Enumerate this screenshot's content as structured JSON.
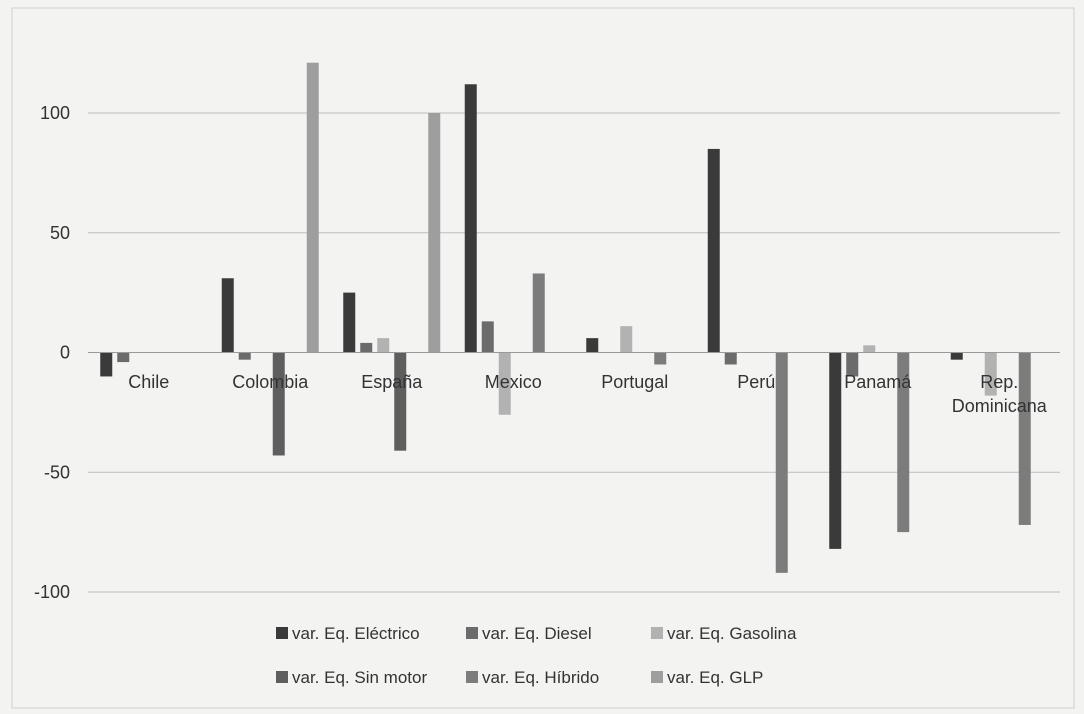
{
  "chart_data": {
    "type": "bar",
    "categories": [
      "Chile",
      "Colombia",
      "España",
      "Mexico",
      "Portugal",
      "Perú",
      "Panamá",
      "Rep. Dominicana"
    ],
    "category_lines": [
      [
        "Chile"
      ],
      [
        "Colombia"
      ],
      [
        "España"
      ],
      [
        "Mexico"
      ],
      [
        "Portugal"
      ],
      [
        "Perú"
      ],
      [
        "Panamá"
      ],
      [
        "Rep.",
        "Dominicana"
      ]
    ],
    "series": [
      {
        "name": "var. Eq. Eléctrico",
        "color": "#3a3a3a",
        "values": [
          -10,
          31,
          25,
          112,
          6,
          85,
          -82,
          -3
        ]
      },
      {
        "name": "var. Eq. Diesel",
        "color": "#6b6b6b",
        "values": [
          -4,
          -3,
          4,
          13,
          0,
          -5,
          -10,
          0
        ]
      },
      {
        "name": "var. Eq. Gasolina",
        "color": "#b2b2b2",
        "values": [
          0,
          0,
          6,
          -26,
          11,
          0,
          3,
          -18
        ]
      },
      {
        "name": "var. Eq. Sin motor",
        "color": "#5e5e5e",
        "values": [
          0,
          -43,
          -41,
          0,
          0,
          0,
          0,
          0
        ]
      },
      {
        "name": "var. Eq. Híbrido",
        "color": "#7c7c7c",
        "values": [
          0,
          0,
          0,
          33,
          -5,
          -92,
          -75,
          -72
        ]
      },
      {
        "name": "var. Eq. GLP",
        "color": "#9e9e9e",
        "values": [
          0,
          121,
          100,
          0,
          0,
          0,
          0,
          0
        ]
      }
    ],
    "y_ticks": [
      "100",
      "50",
      "0",
      "-50",
      "-100"
    ],
    "y_tick_values": [
      100,
      50,
      0,
      -50,
      -100
    ],
    "ylim": [
      -100,
      120
    ],
    "grid": true,
    "legend_position": "bottom",
    "title": "",
    "xlabel": "",
    "ylabel": ""
  }
}
